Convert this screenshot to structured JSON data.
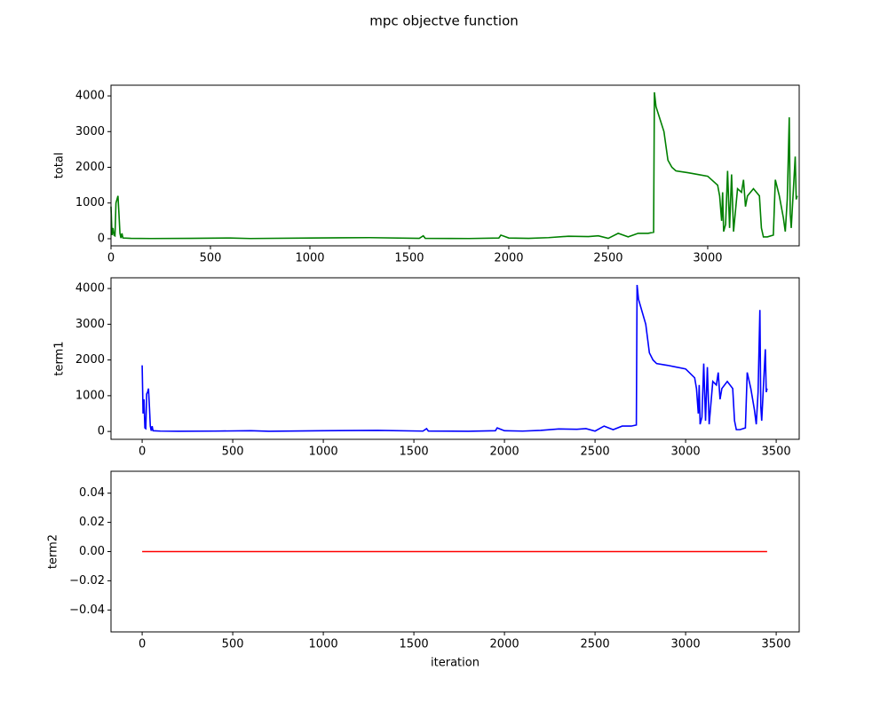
{
  "title": "mpc objectve function",
  "chart_data": [
    {
      "type": "line",
      "ylabel": "total",
      "x": [
        0,
        5,
        10,
        15,
        20,
        25,
        30,
        35,
        40,
        45,
        50,
        55,
        60,
        100,
        200,
        400,
        600,
        700,
        1000,
        1300,
        1550,
        1570,
        1580,
        1800,
        1950,
        1960,
        1980,
        2000,
        2100,
        2200,
        2300,
        2400,
        2450,
        2500,
        2550,
        2600,
        2650,
        2700,
        2728,
        2732,
        2740,
        2780,
        2800,
        2820,
        2840,
        2900,
        2950,
        3000,
        3050,
        3060,
        3070,
        3075,
        3080,
        3090,
        3100,
        3110,
        3120,
        3130,
        3150,
        3170,
        3180,
        3190,
        3200,
        3230,
        3260,
        3270,
        3280,
        3300,
        3330,
        3340,
        3360,
        3380,
        3390,
        3400,
        3410,
        3415,
        3420,
        3440,
        3445,
        3450
      ],
      "series": [
        {
          "color": "#008000",
          "values": [
            900,
            100,
            300,
            100,
            80,
            1000,
            1100,
            1200,
            700,
            150,
            20,
            150,
            20,
            10,
            5,
            10,
            20,
            5,
            20,
            30,
            10,
            80,
            10,
            5,
            20,
            100,
            60,
            20,
            10,
            30,
            70,
            60,
            80,
            10,
            150,
            50,
            150,
            150,
            180,
            4100,
            3700,
            3000,
            2200,
            2000,
            1900,
            1850,
            1800,
            1750,
            1500,
            1200,
            500,
            1300,
            200,
            400,
            1900,
            300,
            1800,
            200,
            1400,
            1300,
            1650,
            900,
            1200,
            1400,
            1200,
            300,
            50,
            50,
            100,
            1650,
            1200,
            600,
            200,
            1100,
            3400,
            700,
            300,
            2300,
            1100,
            1200
          ]
        }
      ],
      "xlim": [
        0,
        3460
      ],
      "ylim": [
        -200,
        4300
      ],
      "xticks": [
        0,
        500,
        1000,
        1500,
        2000,
        2500,
        3000
      ],
      "yticks": [
        0,
        1000,
        2000,
        3000,
        4000
      ]
    },
    {
      "type": "line",
      "ylabel": "term1",
      "x": [
        0,
        5,
        10,
        15,
        20,
        25,
        30,
        35,
        40,
        45,
        50,
        55,
        60,
        100,
        200,
        400,
        600,
        700,
        1000,
        1300,
        1550,
        1570,
        1580,
        1800,
        1950,
        1960,
        1980,
        2000,
        2100,
        2200,
        2300,
        2400,
        2450,
        2500,
        2550,
        2600,
        2650,
        2700,
        2728,
        2732,
        2740,
        2780,
        2800,
        2820,
        2840,
        2900,
        2950,
        3000,
        3050,
        3060,
        3070,
        3075,
        3080,
        3090,
        3100,
        3110,
        3120,
        3130,
        3150,
        3170,
        3180,
        3190,
        3200,
        3230,
        3260,
        3270,
        3280,
        3300,
        3330,
        3340,
        3360,
        3380,
        3390,
        3400,
        3410,
        3415,
        3420,
        3440,
        3445,
        3450
      ],
      "series": [
        {
          "color": "#0000ff",
          "values": [
            1850,
            500,
            900,
            100,
            80,
            1050,
            1100,
            1200,
            700,
            150,
            20,
            150,
            20,
            10,
            5,
            10,
            20,
            5,
            20,
            30,
            10,
            80,
            10,
            5,
            20,
            100,
            60,
            20,
            10,
            30,
            70,
            60,
            80,
            10,
            150,
            50,
            150,
            150,
            180,
            4100,
            3700,
            3000,
            2200,
            2000,
            1900,
            1850,
            1800,
            1750,
            1500,
            1200,
            500,
            1300,
            200,
            400,
            1900,
            300,
            1800,
            200,
            1400,
            1300,
            1650,
            900,
            1200,
            1400,
            1200,
            300,
            50,
            50,
            100,
            1650,
            1200,
            600,
            200,
            1100,
            3400,
            700,
            300,
            2300,
            1100,
            1200
          ]
        }
      ],
      "xlim": [
        -172,
        3627
      ],
      "ylim": [
        -220,
        4300
      ],
      "xticks": [
        0,
        500,
        1000,
        1500,
        2000,
        2500,
        3000,
        3500
      ],
      "yticks": [
        0,
        1000,
        2000,
        3000,
        4000
      ]
    },
    {
      "type": "line",
      "ylabel": "term2",
      "xlabel": "iteration",
      "x": [
        0,
        3450
      ],
      "series": [
        {
          "color": "#ff0000",
          "values": [
            0,
            0
          ]
        }
      ],
      "xlim": [
        -172,
        3627
      ],
      "ylim": [
        -0.055,
        0.055
      ],
      "xticks": [
        0,
        500,
        1000,
        1500,
        2000,
        2500,
        3000,
        3500
      ],
      "yticks": [
        {
          "value": -0.04,
          "label": "−0.04"
        },
        {
          "value": -0.02,
          "label": "−0.02"
        },
        {
          "value": 0,
          "label": "0.00"
        },
        0.02,
        0.04
      ]
    }
  ]
}
